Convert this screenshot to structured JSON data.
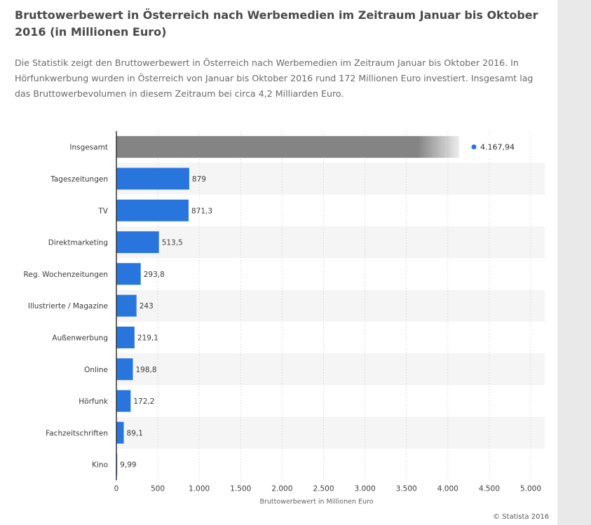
{
  "page": {
    "title": "Bruttowerbewert in Österreich nach Werbemedien im Zeitraum Januar bis Oktober 2016 (in Millionen Euro)",
    "description": "Die Statistik zeigt den Bruttowerbewert in Österreich nach Werbemedien im Zeitraum Januar bis Oktober 2016. In Hörfunkwerbung wurden in Österreich von Januar bis Oktober 2016 rund 172 Millionen Euro investiert. Insgesamt lag das Bruttowerbevolumen in diesem Zeitraum bei circa 4,2 Milliarden Euro.",
    "copyright": "© Statista 2016"
  },
  "colors": {
    "bar": "#2876dd",
    "bar_total": "#848484",
    "stripe": "#f5f5f5",
    "grid": "#c8c8c8",
    "axis": "#333333",
    "text": "#3c3c3c",
    "legend_dot": "#2876dd"
  },
  "chart_data": {
    "type": "bar",
    "orientation": "horizontal",
    "categories": [
      "Insgesamt",
      "Tageszeitungen",
      "TV",
      "Direktmarketing",
      "Reg. Wochenzeitungen",
      "Illustrierte / Magazine",
      "Außenwerbung",
      "Online",
      "Hörfunk",
      "Fachzeitschriften",
      "Kino"
    ],
    "values": [
      4167.94,
      879,
      871.3,
      513.5,
      293.8,
      243,
      219.1,
      198.8,
      172.2,
      89.1,
      9.99
    ],
    "value_labels": [
      "4.167,94",
      "879",
      "871,3",
      "513,5",
      "293,8",
      "243",
      "219,1",
      "198,8",
      "172,2",
      "89,1",
      "9,99"
    ],
    "highlight_index": 0,
    "xlim": [
      0,
      5000
    ],
    "xticks": [
      0,
      500,
      1000,
      1500,
      2000,
      2500,
      3000,
      3500,
      4000,
      4500,
      5000
    ],
    "xtick_labels": [
      "0",
      "500",
      "1.000",
      "1.500",
      "2.000",
      "2.500",
      "3.000",
      "3.500",
      "4.000",
      "4.500",
      "5.000"
    ],
    "xlabel": "Bruttowerbewert in Millionen Euro",
    "ylabel": "",
    "grid": true
  }
}
